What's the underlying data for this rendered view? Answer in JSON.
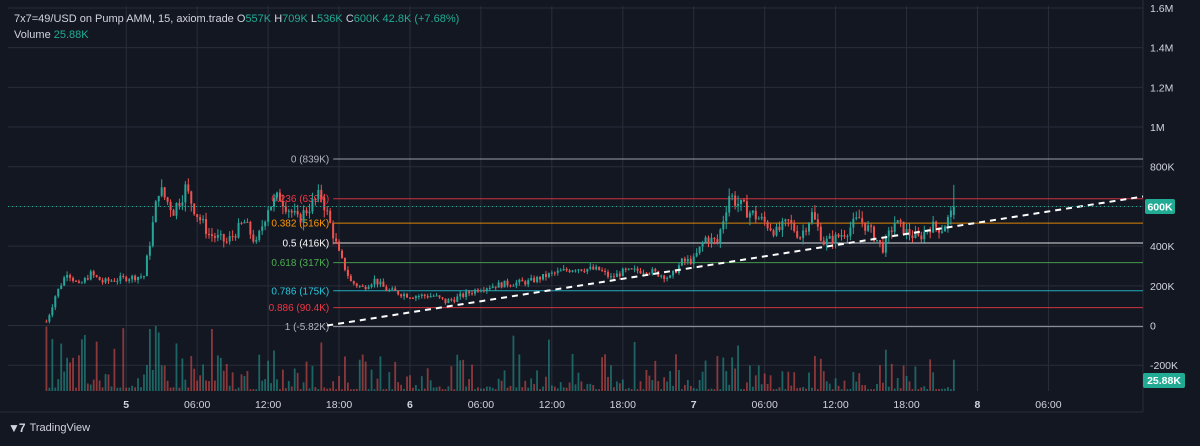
{
  "legend": {
    "symbol": "7x7=49/USD on Pump AMM, 15, axiom.trade",
    "open_label": "O",
    "open": "557K",
    "high_label": "H",
    "high": "709K",
    "low_label": "L",
    "low": "536K",
    "close_label": "C",
    "close": "600K",
    "change": "42.8K (+7.68%)",
    "volume_label": "Volume",
    "volume": "25.88K"
  },
  "brand": {
    "name": "TradingView",
    "icon": "tradingview-logo-icon"
  },
  "colors": {
    "background": "#131722",
    "up": "#26a69a",
    "down": "#ef5350",
    "price_badge": "#22ab94",
    "grid": "#2a2e39",
    "axis_text": "#d1d4dc"
  },
  "chart_data": {
    "type": "candlestick",
    "price_axis": {
      "ticks": [
        {
          "value": 1600000,
          "label": "1.6M"
        },
        {
          "value": 1400000,
          "label": "1.4M"
        },
        {
          "value": 1200000,
          "label": "1.2M"
        },
        {
          "value": 1000000,
          "label": "1M"
        },
        {
          "value": 800000,
          "label": "800K"
        },
        {
          "value": 600000,
          "label": "600K"
        },
        {
          "value": 400000,
          "label": "400K"
        },
        {
          "value": 200000,
          "label": "200K"
        },
        {
          "value": 0,
          "label": "0"
        },
        {
          "value": -200000,
          "label": "-200K"
        }
      ],
      "range": [
        -330000,
        1610000
      ]
    },
    "time_axis": {
      "range": [
        "2025-05-04T14:00",
        "2025-05-08T14:00"
      ],
      "ticks": [
        {
          "t": "2025-05-05T00:00",
          "label": "5",
          "bold": true
        },
        {
          "t": "2025-05-05T06:00",
          "label": "06:00"
        },
        {
          "t": "2025-05-05T12:00",
          "label": "12:00"
        },
        {
          "t": "2025-05-05T18:00",
          "label": "18:00"
        },
        {
          "t": "2025-05-06T00:00",
          "label": "6",
          "bold": true
        },
        {
          "t": "2025-05-06T06:00",
          "label": "06:00"
        },
        {
          "t": "2025-05-06T12:00",
          "label": "12:00"
        },
        {
          "t": "2025-05-06T18:00",
          "label": "18:00"
        },
        {
          "t": "2025-05-07T00:00",
          "label": "7",
          "bold": true
        },
        {
          "t": "2025-05-07T06:00",
          "label": "06:00"
        },
        {
          "t": "2025-05-07T12:00",
          "label": "12:00"
        },
        {
          "t": "2025-05-07T18:00",
          "label": "18:00"
        },
        {
          "t": "2025-05-08T00:00",
          "label": "8",
          "bold": true
        },
        {
          "t": "2025-05-08T06:00",
          "label": "06:00"
        }
      ]
    },
    "price_path": [
      [
        "2025-05-04T17:15",
        20000
      ],
      [
        "2025-05-04T17:30",
        60000
      ],
      [
        "2025-05-04T18:00",
        150000
      ],
      [
        "2025-05-04T19:00",
        270000
      ],
      [
        "2025-05-04T20:00",
        200000
      ],
      [
        "2025-05-04T21:00",
        260000
      ],
      [
        "2025-05-04T22:00",
        220000
      ],
      [
        "2025-05-05T00:00",
        240000
      ],
      [
        "2025-05-05T01:30",
        250000
      ],
      [
        "2025-05-05T02:00",
        420000
      ],
      [
        "2025-05-05T02:45",
        690000
      ],
      [
        "2025-05-05T04:00",
        580000
      ],
      [
        "2025-05-05T05:00",
        690000
      ],
      [
        "2025-05-05T06:00",
        560000
      ],
      [
        "2025-05-05T07:00",
        460000
      ],
      [
        "2025-05-05T08:30",
        420000
      ],
      [
        "2025-05-05T10:00",
        520000
      ],
      [
        "2025-05-05T11:00",
        410000
      ],
      [
        "2025-05-05T12:00",
        600000
      ],
      [
        "2025-05-05T13:00",
        650000
      ],
      [
        "2025-05-05T14:30",
        530000
      ],
      [
        "2025-05-05T15:30",
        600000
      ],
      [
        "2025-05-05T16:30",
        660000
      ],
      [
        "2025-05-05T17:00",
        560000
      ],
      [
        "2025-05-05T18:00",
        360000
      ],
      [
        "2025-05-05T19:00",
        220000
      ],
      [
        "2025-05-05T20:00",
        190000
      ],
      [
        "2025-05-05T21:00",
        230000
      ],
      [
        "2025-05-05T22:00",
        180000
      ],
      [
        "2025-05-06T00:00",
        150000
      ],
      [
        "2025-05-06T02:00",
        150000
      ],
      [
        "2025-05-06T03:00",
        120000
      ],
      [
        "2025-05-06T04:00",
        140000
      ],
      [
        "2025-05-06T06:00",
        190000
      ],
      [
        "2025-05-06T08:00",
        210000
      ],
      [
        "2025-05-06T10:00",
        220000
      ],
      [
        "2025-05-06T12:00",
        260000
      ],
      [
        "2025-05-06T14:00",
        290000
      ],
      [
        "2025-05-06T16:00",
        280000
      ],
      [
        "2025-05-06T17:00",
        240000
      ],
      [
        "2025-05-06T18:00",
        270000
      ],
      [
        "2025-05-06T20:00",
        280000
      ],
      [
        "2025-05-06T22:00",
        240000
      ],
      [
        "2025-05-06T23:00",
        320000
      ],
      [
        "2025-05-07T00:00",
        330000
      ],
      [
        "2025-05-07T01:00",
        440000
      ],
      [
        "2025-05-07T02:00",
        420000
      ],
      [
        "2025-05-07T03:00",
        660000
      ],
      [
        "2025-05-07T04:00",
        600000
      ],
      [
        "2025-05-07T05:00",
        560000
      ],
      [
        "2025-05-07T06:00",
        520000
      ],
      [
        "2025-05-07T07:00",
        470000
      ],
      [
        "2025-05-07T08:00",
        520000
      ],
      [
        "2025-05-07T09:00",
        450000
      ],
      [
        "2025-05-07T10:00",
        560000
      ],
      [
        "2025-05-07T11:00",
        420000
      ],
      [
        "2025-05-07T12:00",
        440000
      ],
      [
        "2025-05-07T13:00",
        480000
      ],
      [
        "2025-05-07T14:00",
        540000
      ],
      [
        "2025-05-07T15:00",
        470000
      ],
      [
        "2025-05-07T16:00",
        390000
      ],
      [
        "2025-05-07T17:00",
        520000
      ],
      [
        "2025-05-07T18:00",
        470000
      ],
      [
        "2025-05-07T19:00",
        440000
      ],
      [
        "2025-05-07T20:00",
        500000
      ],
      [
        "2025-05-07T21:00",
        490000
      ],
      [
        "2025-05-07T21:45",
        557000
      ],
      [
        "2025-05-07T22:00",
        600000
      ]
    ],
    "fibonacci": [
      {
        "label": "0 (839K)",
        "value": 839000,
        "color": "#b2b5be"
      },
      {
        "label": "0.236 (639K)",
        "value": 639000,
        "color": "#f23645"
      },
      {
        "label": "0.382 (516K)",
        "value": 516000,
        "color": "#ff9800"
      },
      {
        "label": "0.5 (416K)",
        "value": 416000,
        "color": "#ffffff"
      },
      {
        "label": "0.618 (317K)",
        "value": 317000,
        "color": "#4caf50"
      },
      {
        "label": "0.786 (175K)",
        "value": 175000,
        "color": "#26c6da"
      },
      {
        "label": "0.886 (90.4K)",
        "value": 90400,
        "color": "#f23645"
      },
      {
        "label": "1 (-5.82K)",
        "value": -5820,
        "color": "#b2b5be"
      }
    ],
    "fib_start": "2025-05-05T17:00",
    "trendline": {
      "from": [
        "2025-05-05T17:00",
        0
      ],
      "to": [
        "2025-05-08T14:00",
        650000
      ],
      "style": "dashed",
      "color": "#ffffff"
    },
    "last_price": {
      "value": 600000,
      "label": "600K"
    },
    "volume": {
      "last_label": "25.88K",
      "max": 400000
    }
  }
}
